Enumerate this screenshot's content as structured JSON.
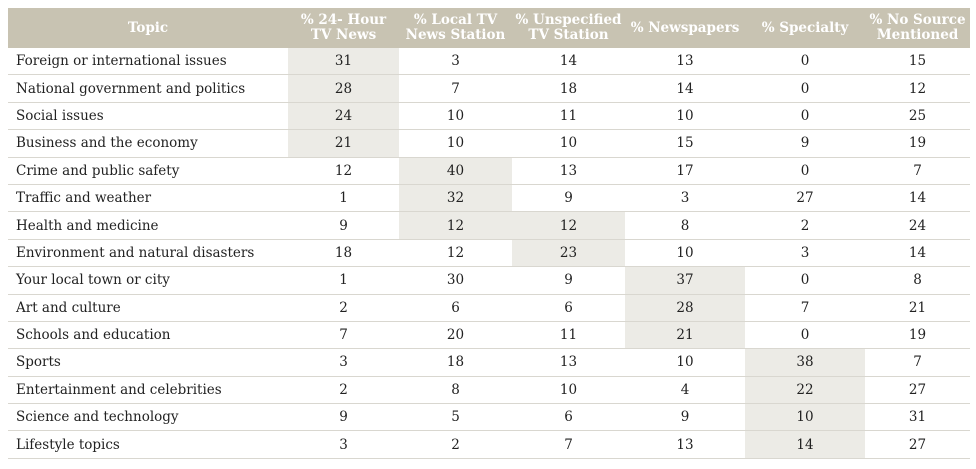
{
  "chart_data": {
    "type": "table",
    "columns": [
      "Topic",
      "% 24- Hour TV News",
      "% Local TV News Station",
      "% Unspecified TV Station",
      "% Newspapers",
      "% Specialty",
      "% No Source Mentioned"
    ],
    "header_lines": [
      [
        "Topic"
      ],
      [
        "% 24- Hour",
        "TV News"
      ],
      [
        "% Local TV",
        "News Station"
      ],
      [
        "% Unspecified",
        "TV Station"
      ],
      [
        "% Newspapers"
      ],
      [
        "% Specialty"
      ],
      [
        "% No Source",
        "Mentioned"
      ]
    ],
    "rows": [
      {
        "topic": "Foreign or international issues",
        "values": [
          31,
          3,
          14,
          13,
          0,
          15
        ],
        "highlight": 0
      },
      {
        "topic": "National government and politics",
        "values": [
          28,
          7,
          18,
          14,
          0,
          12
        ],
        "highlight": 0
      },
      {
        "topic": "Social issues",
        "values": [
          24,
          10,
          11,
          10,
          0,
          25
        ],
        "highlight": 0
      },
      {
        "topic": "Business and the economy",
        "values": [
          21,
          10,
          10,
          15,
          9,
          19
        ],
        "highlight": 0
      },
      {
        "topic": "Crime and public safety",
        "values": [
          12,
          40,
          13,
          17,
          0,
          7
        ],
        "highlight": 1
      },
      {
        "topic": "Traffic and weather",
        "values": [
          1,
          32,
          9,
          3,
          27,
          14
        ],
        "highlight": 1
      },
      {
        "topic": "Health and medicine",
        "values": [
          9,
          12,
          12,
          8,
          2,
          24
        ],
        "highlight": [
          1,
          2
        ]
      },
      {
        "topic": "Environment and natural disasters",
        "values": [
          18,
          12,
          23,
          10,
          3,
          14
        ],
        "highlight": 2
      },
      {
        "topic": "Your local town or city",
        "values": [
          1,
          30,
          9,
          37,
          0,
          8
        ],
        "highlight": 3
      },
      {
        "topic": "Art and culture",
        "values": [
          2,
          6,
          6,
          28,
          7,
          21
        ],
        "highlight": 3
      },
      {
        "topic": "Schools and education",
        "values": [
          7,
          20,
          11,
          21,
          0,
          19
        ],
        "highlight": 3
      },
      {
        "topic": "Sports",
        "values": [
          3,
          18,
          13,
          10,
          38,
          7
        ],
        "highlight": 4
      },
      {
        "topic": "Entertainment and celebrities",
        "values": [
          2,
          8,
          10,
          4,
          22,
          27
        ],
        "highlight": 4
      },
      {
        "topic": "Science and technology",
        "values": [
          9,
          5,
          6,
          9,
          10,
          31
        ],
        "highlight": 4
      },
      {
        "topic": "Lifestyle topics",
        "values": [
          3,
          2,
          7,
          13,
          14,
          27
        ],
        "highlight": 4
      }
    ]
  },
  "colors": {
    "header_bg": "#c8c3b2",
    "highlight_bg": "#ecebe6",
    "row_rule": "#d9d7d0"
  }
}
